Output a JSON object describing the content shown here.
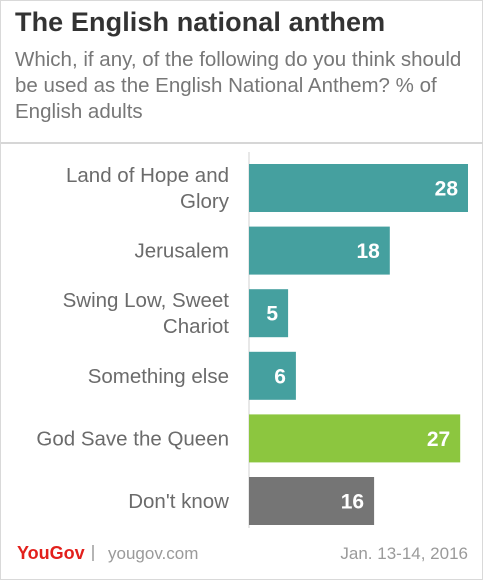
{
  "header": {
    "title": "The English national anthem",
    "subtitle": "Which, if any, of the following do you think should be used as the English National Anthem? % of English adults"
  },
  "footer": {
    "brand": "YouGov",
    "site": "yougov.com",
    "date": "Jan. 13-14, 2016"
  },
  "colors": {
    "teal": "#45a09f",
    "green": "#8cc63f",
    "grey": "#757575",
    "label_text": "#6b6b6b",
    "brand_red": "#e2201c"
  },
  "chart_data": {
    "type": "bar",
    "orientation": "horizontal",
    "categories": [
      "Land of Hope and Glory",
      "Jerusalem",
      "Swing Low, Sweet Chariot",
      "Something else",
      "God Save the Queen",
      "Don't know"
    ],
    "values": [
      28,
      18,
      5,
      6,
      27,
      16
    ],
    "bar_colors": [
      "#45a09f",
      "#45a09f",
      "#45a09f",
      "#45a09f",
      "#8cc63f",
      "#757575"
    ],
    "title": "The English national anthem",
    "xlabel": "",
    "ylabel": "",
    "unit": "%",
    "xlim": [
      0,
      28
    ],
    "grid": false,
    "legend": "none",
    "data_labels": true
  }
}
